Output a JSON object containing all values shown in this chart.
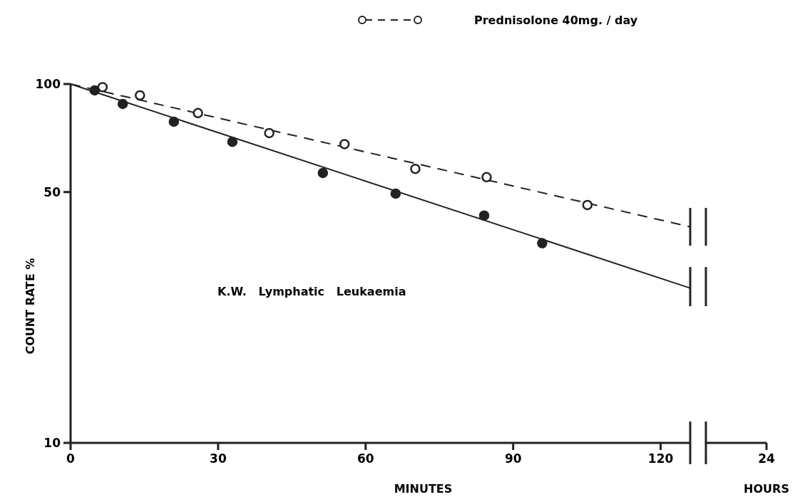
{
  "chart_data": {
    "type": "line",
    "ylabel": "COUNT RATE %",
    "xlabel": "MINUTES",
    "log": "y",
    "legend": "top right",
    "grid": false,
    "xlim": [
      0,
      126
    ],
    "xticks": [
      0,
      30,
      60,
      90,
      120
    ],
    "ylim": [
      10,
      100
    ],
    "yticks": [
      10,
      50,
      100
    ],
    "annotations": [
      "K.W.   Lymphatic   Leukaemia",
      "HOURS",
      "24"
    ],
    "series": [
      {
        "name": "Prednisolone 40mg. / day",
        "color": "#222222",
        "line_style": "dashed",
        "x": [
          0,
          126
        ],
        "values": [
          100,
          40
        ]
      },
      {
        "color": "#222222",
        "line_style": "solid",
        "x": [
          0,
          126
        ],
        "values": [
          100,
          27
        ]
      },
      {
        "type": "scatter",
        "color": "#ffffff",
        "marker": "circle",
        "x": [
          6.5,
          14.1,
          25.9,
          40.4,
          55.7,
          70.1,
          84.6,
          105.1
        ],
        "values": [
          98,
          93,
          83,
          73,
          68,
          58,
          55,
          46
        ]
      },
      {
        "type": "scatter",
        "color": "#222222",
        "marker": "circle",
        "x": [
          4.9,
          10.6,
          21,
          32.9,
          51.3,
          66.1,
          84.1,
          95.9
        ],
        "values": [
          96,
          88,
          78.5,
          69,
          56.5,
          49.5,
          43,
          36
        ]
      }
    ]
  }
}
